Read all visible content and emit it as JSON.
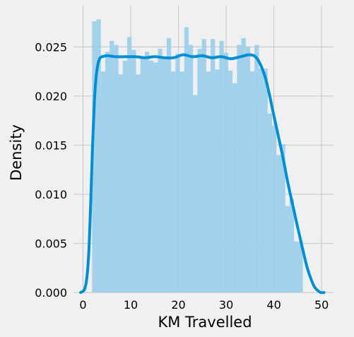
{
  "chart_data": {
    "type": "histogram",
    "title": "",
    "xlabel": "KM Travelled",
    "ylabel": "Density",
    "xlim": [
      -2,
      52.5
    ],
    "ylim": [
      0,
      0.0292
    ],
    "xticks": [
      0,
      10,
      20,
      30,
      40,
      50
    ],
    "yticks": [
      0.0,
      0.005,
      0.01,
      0.015,
      0.02,
      0.025
    ],
    "ytick_labels": [
      "0.000",
      "0.005",
      "0.010",
      "0.015",
      "0.020",
      "0.025"
    ],
    "grid": true,
    "colors": {
      "bar": "#9ccfea",
      "kde": "#008fd5",
      "background": "#f0f0f0",
      "grid": "#cbcbcb"
    },
    "bins": {
      "start": 1.9,
      "width": 0.92,
      "values": [
        0.0276,
        0.0278,
        0.0225,
        0.0245,
        0.0256,
        0.0252,
        0.0222,
        0.0236,
        0.026,
        0.0247,
        0.0222,
        0.024,
        0.0245,
        0.0236,
        0.0234,
        0.0248,
        0.0238,
        0.0259,
        0.0225,
        0.0243,
        0.0225,
        0.027,
        0.0252,
        0.0201,
        0.0248,
        0.0258,
        0.0225,
        0.0258,
        0.0227,
        0.0256,
        0.0244,
        0.0226,
        0.0213,
        0.0252,
        0.0259,
        0.025,
        0.0225,
        0.0252,
        0.0228,
        0.0228,
        0.0182,
        0.017,
        0.014,
        0.0151,
        0.0088,
        0.0095,
        0.0052,
        0.0052
      ]
    },
    "kde": {
      "x": [
        -0.5,
        0.3,
        0.8,
        1.2,
        1.6,
        2.0,
        2.4,
        2.8,
        3.2,
        3.6,
        4.0,
        5.0,
        7.0,
        9.0,
        11.0,
        13.0,
        15.0,
        17.0,
        19.0,
        21.0,
        23.0,
        25.0,
        27.0,
        29.0,
        31.0,
        33.0,
        35.0,
        36.5,
        38.0,
        39.0,
        40.0,
        41.0,
        42.0,
        43.0,
        44.0,
        45.0,
        46.0,
        47.0,
        48.0,
        48.6,
        49.2,
        49.8,
        50.5
      ],
      "y": [
        0.0,
        0.0003,
        0.0015,
        0.004,
        0.009,
        0.015,
        0.0196,
        0.0222,
        0.0234,
        0.0239,
        0.024,
        0.0241,
        0.024,
        0.024,
        0.024,
        0.0239,
        0.024,
        0.0239,
        0.0239,
        0.0242,
        0.024,
        0.0241,
        0.0239,
        0.024,
        0.0238,
        0.024,
        0.0242,
        0.0238,
        0.0222,
        0.0203,
        0.018,
        0.0158,
        0.0135,
        0.011,
        0.0088,
        0.0066,
        0.0045,
        0.0025,
        0.0011,
        0.0005,
        0.0002,
        0.0,
        0.0
      ]
    }
  }
}
